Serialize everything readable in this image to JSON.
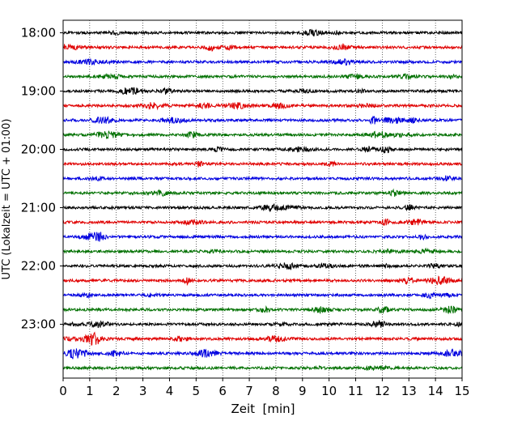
{
  "chart_data": {
    "type": "line",
    "title": "",
    "xlabel": "Zeit  [min]",
    "ylabel": "UTC (Lokalzeit = UTC + 01:00)",
    "xlim": [
      0,
      15
    ],
    "x_ticks": [
      "0",
      "1",
      "2",
      "3",
      "4",
      "5",
      "6",
      "7",
      "8",
      "9",
      "10",
      "11",
      "12",
      "13",
      "14",
      "15"
    ],
    "y_tick_labels": [
      "18:00",
      "19:00",
      "20:00",
      "21:00",
      "22:00",
      "23:00"
    ],
    "grid": "vertical dotted",
    "rows_per_hour": 4,
    "row_minutes": 15,
    "row_colors": [
      "#000000",
      "#e00000",
      "#0000e0",
      "#007000"
    ],
    "rows": [
      {
        "start": "18:00",
        "color": "#000000"
      },
      {
        "start": "18:15",
        "color": "#e00000"
      },
      {
        "start": "18:30",
        "color": "#0000e0"
      },
      {
        "start": "18:45",
        "color": "#007000"
      },
      {
        "start": "19:00",
        "color": "#000000"
      },
      {
        "start": "19:15",
        "color": "#e00000"
      },
      {
        "start": "19:30",
        "color": "#0000e0"
      },
      {
        "start": "19:45",
        "color": "#007000"
      },
      {
        "start": "20:00",
        "color": "#000000"
      },
      {
        "start": "20:15",
        "color": "#e00000"
      },
      {
        "start": "20:30",
        "color": "#0000e0"
      },
      {
        "start": "20:45",
        "color": "#007000"
      },
      {
        "start": "21:00",
        "color": "#000000"
      },
      {
        "start": "21:15",
        "color": "#e00000"
      },
      {
        "start": "21:30",
        "color": "#0000e0"
      },
      {
        "start": "21:45",
        "color": "#007000"
      },
      {
        "start": "22:00",
        "color": "#000000"
      },
      {
        "start": "22:15",
        "color": "#e00000"
      },
      {
        "start": "22:30",
        "color": "#0000e0"
      },
      {
        "start": "22:45",
        "color": "#007000"
      },
      {
        "start": "23:00",
        "color": "#000000"
      },
      {
        "start": "23:15",
        "color": "#e00000"
      },
      {
        "start": "23:30",
        "color": "#0000e0"
      },
      {
        "start": "23:45",
        "color": "#007000"
      }
    ]
  }
}
